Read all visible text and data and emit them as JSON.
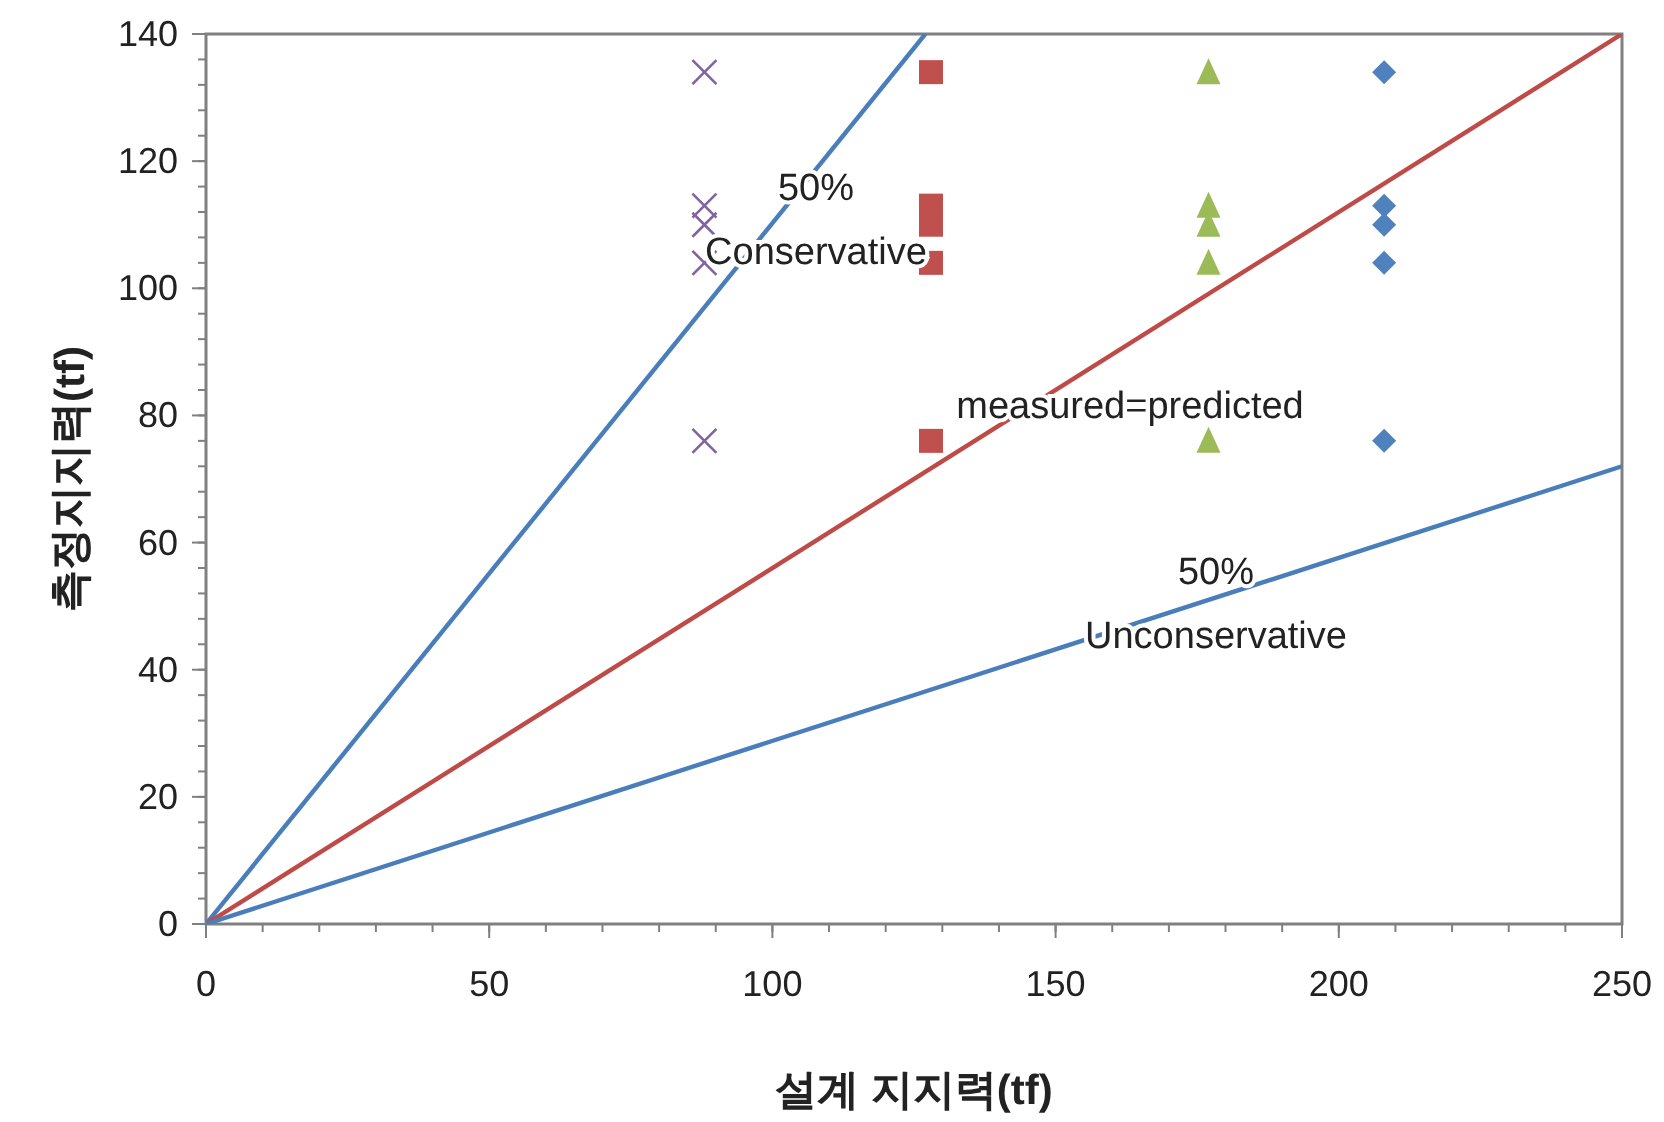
{
  "chart_data": {
    "type": "scatter",
    "xlabel": "설계 지지력(tf)",
    "ylabel": "측정지지력(tf)",
    "xlim": [
      0,
      250
    ],
    "ylim": [
      0,
      140
    ],
    "xticks": [
      0,
      50,
      100,
      150,
      200,
      250
    ],
    "yticks": [
      0,
      20,
      40,
      60,
      80,
      100,
      120,
      140
    ],
    "grid": false,
    "series": [
      {
        "type": "line",
        "color": "#4a7ebb",
        "x": [
          0,
          127
        ],
        "values": [
          0,
          140
        ],
        "marker": "none"
      },
      {
        "type": "line",
        "color": "#be4b48",
        "x": [
          0,
          250
        ],
        "values": [
          0,
          140
        ],
        "marker": "none"
      },
      {
        "type": "line",
        "color": "#4a7ebb",
        "x": [
          0,
          250
        ],
        "values": [
          0,
          72
        ],
        "marker": "none"
      },
      {
        "color": "#8064a2",
        "marker": "cross",
        "x": [
          88,
          88,
          88,
          88,
          88
        ],
        "values": [
          134,
          113,
          110,
          104,
          76
        ]
      },
      {
        "color": "#c0504d",
        "marker": "square",
        "x": [
          128,
          128,
          128,
          128,
          128
        ],
        "values": [
          134,
          113,
          110,
          104,
          76
        ]
      },
      {
        "color": "#9bbb59",
        "marker": "triangle",
        "x": [
          177,
          177,
          177,
          177,
          177
        ],
        "values": [
          134,
          113,
          110,
          104,
          76
        ]
      },
      {
        "color": "#4f81bd",
        "marker": "diamond",
        "x": [
          208,
          208,
          208,
          208,
          208
        ],
        "values": [
          134,
          113,
          110,
          104,
          76
        ]
      }
    ],
    "annotations": [
      "50%",
      "Conservative",
      "measured=predicted",
      "50%",
      "Unconservative"
    ]
  }
}
